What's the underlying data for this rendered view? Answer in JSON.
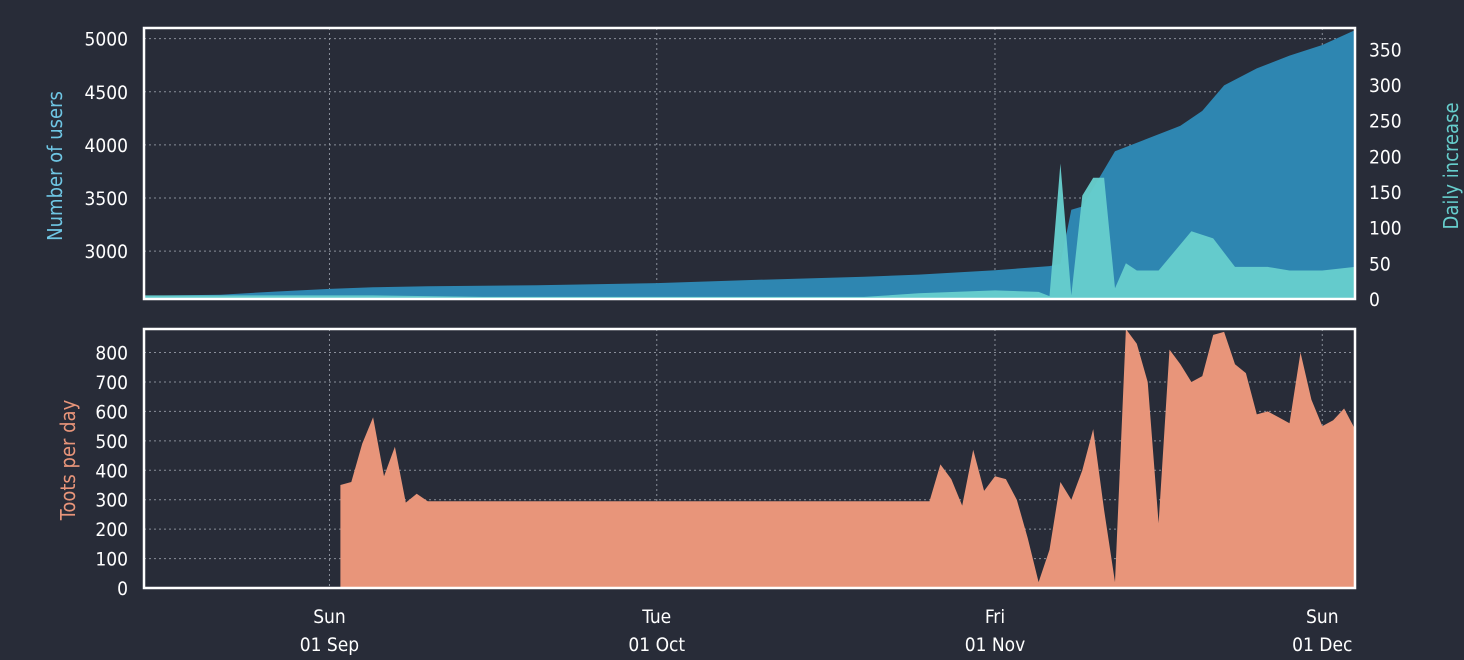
{
  "chart_data": [
    {
      "type": "area",
      "ylabel": "Number of users",
      "y2label": "Daily increase",
      "ylim": [
        2550,
        5100
      ],
      "y2lim": [
        0,
        380
      ],
      "yticks": [
        3000,
        3500,
        4000,
        4500,
        5000
      ],
      "y2ticks": [
        0,
        50,
        100,
        150,
        200,
        250,
        300,
        350
      ],
      "xlim": [
        "2019-08-15",
        "2019-12-04"
      ],
      "grid": true,
      "colors": {
        "users": "#2e86b1",
        "daily_increase": "#66cdcc"
      },
      "series": [
        {
          "axis": "left",
          "x": [
            "2019-08-15",
            "2019-08-22",
            "2019-08-27",
            "2019-09-01",
            "2019-09-05",
            "2019-09-10",
            "2019-09-15",
            "2019-09-20",
            "2019-10-01",
            "2019-10-10",
            "2019-10-20",
            "2019-10-25",
            "2019-11-01",
            "2019-11-06",
            "2019-11-07",
            "2019-11-08",
            "2019-11-09",
            "2019-11-12",
            "2019-11-15",
            "2019-11-18",
            "2019-11-20",
            "2019-11-22",
            "2019-11-25",
            "2019-11-28",
            "2019-12-01",
            "2019-12-04"
          ],
          "values": [
            2580,
            2590,
            2620,
            2645,
            2660,
            2670,
            2675,
            2680,
            2700,
            2730,
            2760,
            2780,
            2820,
            2860,
            2880,
            3390,
            3420,
            3940,
            4060,
            4180,
            4320,
            4560,
            4720,
            4840,
            4940,
            5080
          ]
        },
        {
          "axis": "right",
          "x": [
            "2019-08-15",
            "2019-09-05",
            "2019-09-15",
            "2019-10-20",
            "2019-10-25",
            "2019-11-01",
            "2019-11-05",
            "2019-11-06",
            "2019-11-07",
            "2019-11-08",
            "2019-11-09",
            "2019-11-10",
            "2019-11-11",
            "2019-11-12",
            "2019-11-13",
            "2019-11-14",
            "2019-11-16",
            "2019-11-19",
            "2019-11-21",
            "2019-11-23",
            "2019-11-26",
            "2019-11-28",
            "2019-12-01",
            "2019-12-04"
          ],
          "values": [
            5,
            5,
            3,
            3,
            8,
            12,
            10,
            4,
            190,
            5,
            145,
            170,
            170,
            15,
            50,
            40,
            40,
            95,
            85,
            45,
            45,
            40,
            40,
            45
          ]
        }
      ]
    },
    {
      "type": "area",
      "ylabel": "Toots per day",
      "ylim": [
        0,
        880
      ],
      "yticks": [
        0,
        100,
        200,
        300,
        400,
        500,
        600,
        700,
        800
      ],
      "xlim": [
        "2019-08-15",
        "2019-12-04"
      ],
      "xticks": [
        {
          "date": "2019-09-01",
          "day": "Sun",
          "label": "01 Sep"
        },
        {
          "date": "2019-10-01",
          "day": "Tue",
          "label": "01 Oct"
        },
        {
          "date": "2019-11-01",
          "day": "Fri",
          "label": "01 Nov"
        },
        {
          "date": "2019-12-01",
          "day": "Sun",
          "label": "01 Dec"
        }
      ],
      "grid": true,
      "colors": {
        "toots": "#e8957a"
      },
      "series": [
        {
          "x": [
            "2019-09-01",
            "2019-09-02",
            "2019-09-03",
            "2019-09-04",
            "2019-09-05",
            "2019-09-06",
            "2019-09-07",
            "2019-09-08",
            "2019-09-09",
            "2019-09-10",
            "2019-10-26",
            "2019-10-27",
            "2019-10-28",
            "2019-10-29",
            "2019-10-30",
            "2019-10-31",
            "2019-11-01",
            "2019-11-02",
            "2019-11-03",
            "2019-11-04",
            "2019-11-05",
            "2019-11-06",
            "2019-11-07",
            "2019-11-08",
            "2019-11-09",
            "2019-11-10",
            "2019-11-11",
            "2019-11-12",
            "2019-11-13",
            "2019-11-14",
            "2019-11-15",
            "2019-11-16",
            "2019-11-17",
            "2019-11-18",
            "2019-11-19",
            "2019-11-20",
            "2019-11-21",
            "2019-11-22",
            "2019-11-23",
            "2019-11-24",
            "2019-11-25",
            "2019-11-26",
            "2019-11-27",
            "2019-11-28",
            "2019-11-29",
            "2019-11-30",
            "2019-12-01",
            "2019-12-02",
            "2019-12-03",
            "2019-12-04"
          ],
          "values": [
            null,
            350,
            360,
            490,
            580,
            380,
            480,
            290,
            320,
            295,
            295,
            420,
            370,
            280,
            470,
            330,
            380,
            370,
            300,
            170,
            20,
            130,
            360,
            300,
            400,
            540,
            265,
            20,
            880,
            830,
            700,
            220,
            810,
            760,
            700,
            720,
            860,
            870,
            760,
            730,
            590,
            600,
            580,
            560,
            800,
            640,
            550,
            570,
            610,
            540
          ]
        }
      ]
    }
  ]
}
